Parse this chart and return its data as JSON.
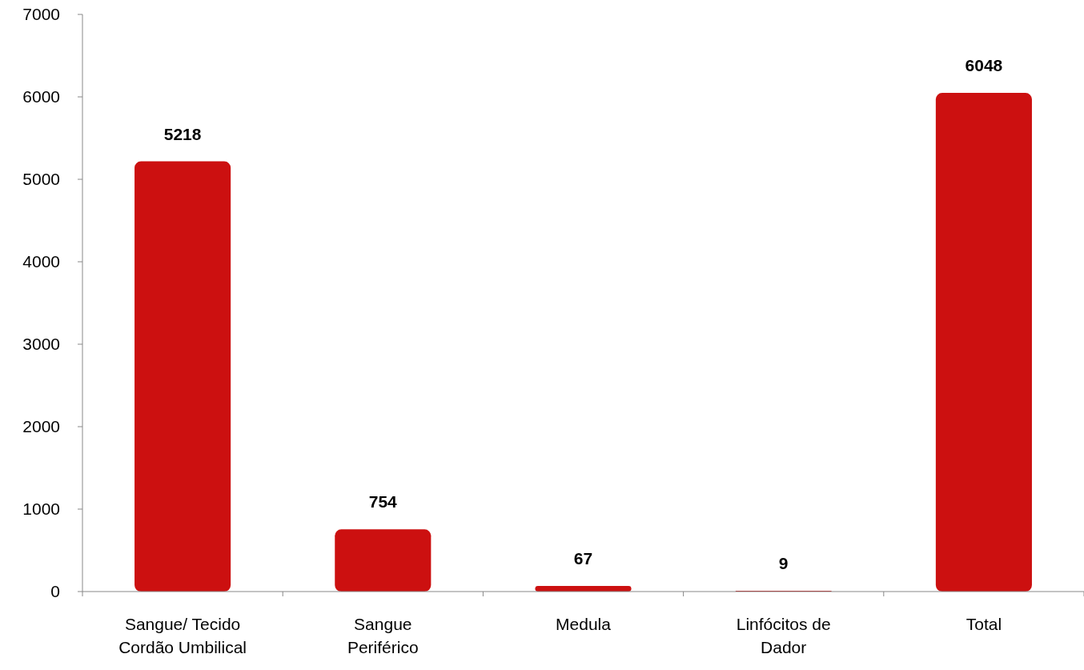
{
  "chart_data": {
    "type": "bar",
    "categories": [
      "Sangue/ Tecido Cordão Umbilical",
      "Sangue Periférico",
      "Medula",
      "Linfócitos de Dador",
      "Total"
    ],
    "values": [
      5218,
      754,
      67,
      9,
      6048
    ],
    "color": "#cc1010",
    "ylim": [
      0,
      7000
    ],
    "yticks": [
      0,
      1000,
      2000,
      3000,
      4000,
      5000,
      6000,
      7000
    ],
    "data_labels": true,
    "grid": false
  }
}
